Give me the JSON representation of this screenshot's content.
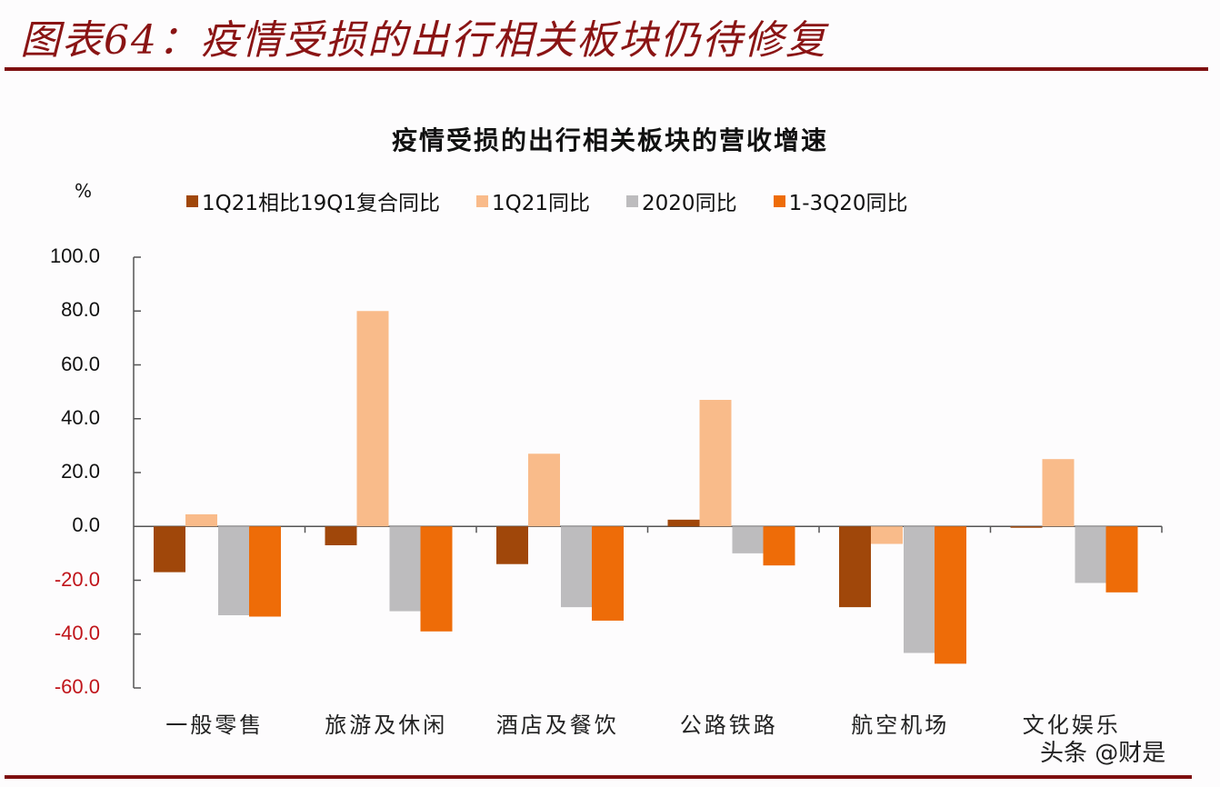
{
  "figure": {
    "title": "图表64：疫情受损的出行相关板块仍待修复",
    "rule_color": "#7e0f10",
    "title_color": "#8a1414"
  },
  "watermark": "头条 @财是",
  "chart_data": {
    "type": "bar",
    "title": "疫情受损的出行相关板块的营收增速",
    "ylabel": "%",
    "xlabel": "",
    "ylim": [
      -60,
      100
    ],
    "yticks": [
      100.0,
      80.0,
      60.0,
      40.0,
      20.0,
      0.0,
      -20.0,
      -40.0,
      -60.0
    ],
    "ytick_labels": [
      "100.0",
      "80.0",
      "60.0",
      "40.0",
      "20.0",
      "0.0",
      "-20.0",
      "-40.0",
      "-60.0"
    ],
    "negative_tick_color": "#c0141a",
    "grid": false,
    "legend_position": "top",
    "categories": [
      "一般零售",
      "旅游及休闲",
      "酒店及餐饮",
      "公路铁路",
      "航空机场",
      "文化娱乐"
    ],
    "series": [
      {
        "name": "1Q21相比19Q1复合同比",
        "color": "#a0470a",
        "values": [
          -17.0,
          -7.0,
          -14.0,
          2.5,
          -30.0,
          -0.5
        ]
      },
      {
        "name": "1Q21同比",
        "color": "#f9bb8a",
        "values": [
          4.5,
          80.0,
          27.0,
          47.0,
          -6.5,
          25.0
        ]
      },
      {
        "name": "2020同比",
        "color": "#bdbcbe",
        "values": [
          -33.0,
          -31.5,
          -30.0,
          -10.0,
          -47.0,
          -21.0
        ]
      },
      {
        "name": "1-3Q20同比",
        "color": "#ee6c08",
        "values": [
          -33.5,
          -39.0,
          -35.0,
          -14.5,
          -51.0,
          -24.5
        ]
      }
    ]
  }
}
